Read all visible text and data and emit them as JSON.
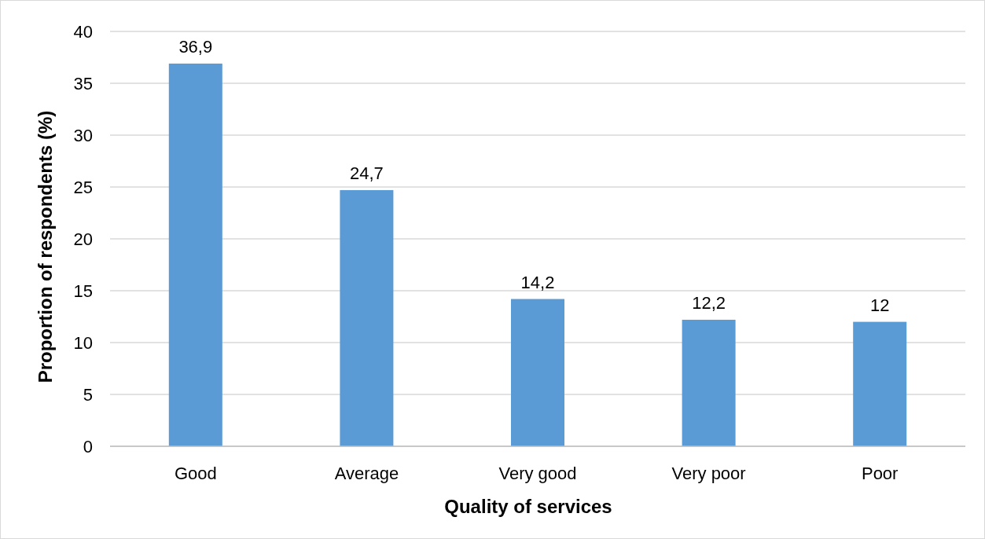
{
  "chart_data": {
    "type": "bar",
    "xlabel": "Quality of services",
    "ylabel": "Proportion of respondents (%)",
    "categories": [
      "Good",
      "Average",
      "Very good",
      "Very poor",
      "Poor"
    ],
    "values": [
      36.9,
      24.7,
      14.2,
      12.2,
      12
    ],
    "value_labels": [
      "36,9",
      "24,7",
      "14,2",
      "12,2",
      "12"
    ],
    "color": "#5b9bd5",
    "ylim": [
      0,
      40
    ],
    "yticks": [
      0,
      5,
      10,
      15,
      20,
      25,
      30,
      35,
      40
    ],
    "grid": "y"
  }
}
